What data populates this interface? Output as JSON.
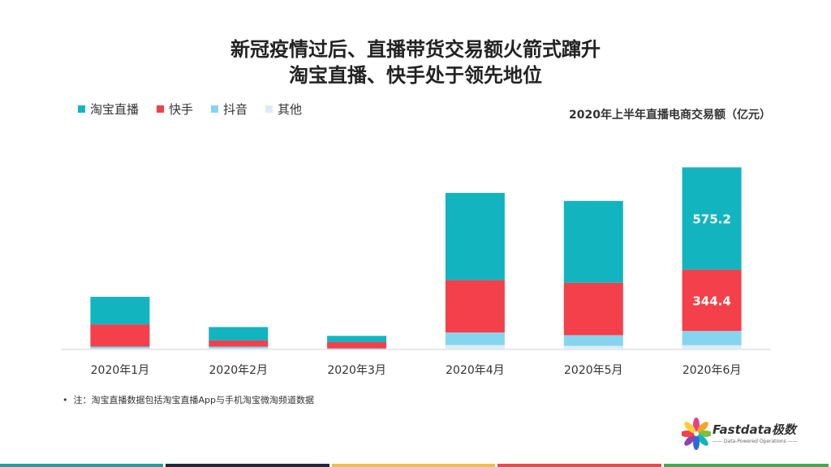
{
  "title_line1": "新冠疫情过后、直播带货交易额火箭式蹿升",
  "title_line2": "淘宝直播、快手处于领先地位",
  "unit_label": "2020年上半年直播电商交易额（亿元）",
  "note": "注：淘宝直播数据包括淘宝直播App与手机淘宝微淘频道数据",
  "logo": {
    "name": "Fastdata极数",
    "tagline": "—— Data-Powered Operations ——"
  },
  "colors": {
    "taobao": "#12b5bf",
    "kuaishou": "#f4404a",
    "douyin": "#86d5ef",
    "other": "#dcedf6"
  },
  "footer_colors": [
    "#1fa0a0",
    "#1e2a3a",
    "#f0c040",
    "#e84a4a",
    "#3fae4f"
  ],
  "chart_data": {
    "type": "bar",
    "stacked": true,
    "categories": [
      "2020年1月",
      "2020年2月",
      "2020年3月",
      "2020年4月",
      "2020年5月",
      "2020年6月"
    ],
    "series": [
      {
        "name": "其他",
        "key": "other",
        "values": [
          6,
          6,
          2,
          25,
          20,
          24
        ]
      },
      {
        "name": "抖音",
        "key": "douyin",
        "values": [
          10,
          10,
          4,
          70,
          60,
          80
        ]
      },
      {
        "name": "快手",
        "key": "kuaishou",
        "values": [
          125,
          35,
          35,
          295,
          295,
          344.4
        ]
      },
      {
        "name": "淘宝直播",
        "key": "taobao",
        "values": [
          155,
          75,
          35,
          490,
          460,
          575.2
        ]
      }
    ],
    "data_labels": [
      {
        "category_index": 5,
        "series": "快手",
        "text": "344.4"
      },
      {
        "category_index": 5,
        "series": "淘宝直播",
        "text": "575.2"
      }
    ],
    "legend_order": [
      "淘宝直播",
      "快手",
      "抖音",
      "其他"
    ],
    "legend_position": "top-left",
    "ylim": [
      0,
      1050
    ],
    "grid": false
  }
}
